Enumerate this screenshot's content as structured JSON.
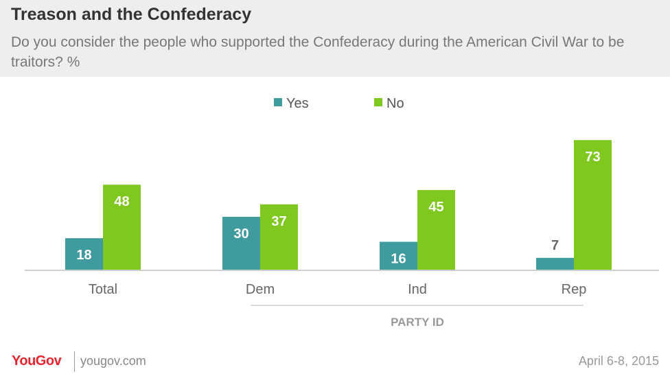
{
  "header": {
    "title": "Treason and the Confederacy",
    "subtitle": "Do you consider the people who supported the Confederacy during the American Civil War to be traitors? %"
  },
  "footer": {
    "logo": "YouGov",
    "url": "yougov.com",
    "date": "April 6-8, 2015"
  },
  "chart_data": {
    "type": "bar",
    "categories": [
      "Total",
      "Dem",
      "Ind",
      "Rep"
    ],
    "series": [
      {
        "name": "Yes",
        "values": [
          18,
          30,
          16,
          7
        ],
        "color": "#3f9b9e"
      },
      {
        "name": "No",
        "values": [
          48,
          37,
          45,
          73
        ],
        "color": "#7ec81f"
      }
    ],
    "group_label": "PARTY ID",
    "grouped_categories": [
      "Dem",
      "Ind",
      "Rep"
    ],
    "legend_position": "top-center",
    "ylim": [
      0,
      80
    ],
    "grid": false
  }
}
